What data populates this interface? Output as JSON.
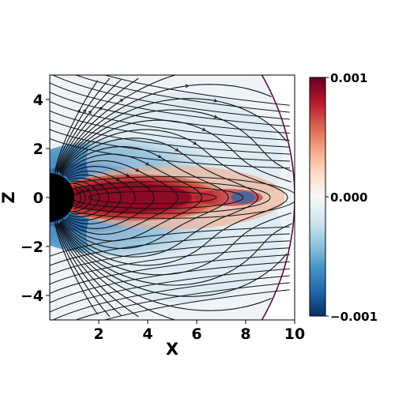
{
  "chart_data": {
    "type": "heatmap",
    "xlabel": "X",
    "ylabel": "Z",
    "xlim": [
      0,
      10
    ],
    "ylim": [
      -5,
      5
    ],
    "x_ticks": [
      "2",
      "4",
      "6",
      "8",
      "10"
    ],
    "y_ticks": [
      "4",
      "2",
      "0",
      "−2",
      "−4"
    ],
    "colorbar": {
      "min_label": "−0.001",
      "mid_label": "0.000",
      "max_label": "0.001",
      "vmin": -0.001,
      "vmax": 0.001,
      "colormap": "RdBu_r",
      "colors": [
        "#053061",
        "#2166ac",
        "#4393c3",
        "#92c5de",
        "#d1e5f0",
        "#f7f7f7",
        "#fddbc7",
        "#f4a582",
        "#d6604d",
        "#b2182b",
        "#67001f"
      ]
    },
    "planet": {
      "radius": 1,
      "color": "#000000"
    },
    "boundary_radius": 10,
    "overlay": "streamlines",
    "grid": false
  }
}
